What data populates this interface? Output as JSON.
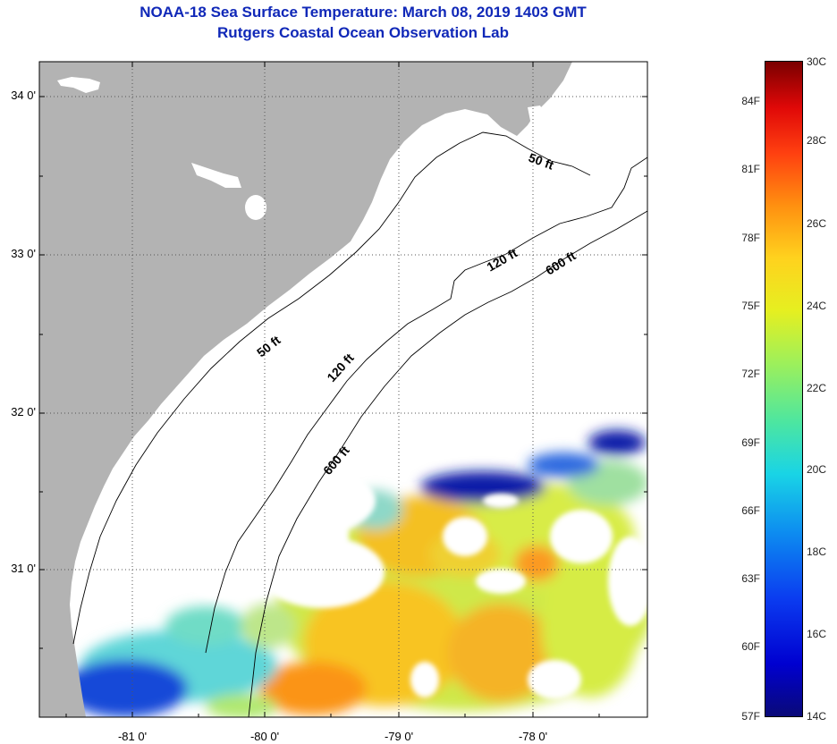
{
  "title_line1": "NOAA-18 Sea Surface Temperature:  March 08, 2019 1403 GMT",
  "title_line2": "Rutgers Coastal Ocean Observation Lab",
  "latitude_labels": [
    "34 0'",
    "33 0'",
    "32 0'",
    "31 0'"
  ],
  "longitude_labels": [
    "-81 0'",
    "-80 0'",
    "-79 0'",
    "-78 0'"
  ],
  "isobath_labels": [
    {
      "name": "50-ft-upper",
      "text": "50 ft"
    },
    {
      "name": "120-ft-upper",
      "text": "120 ft"
    },
    {
      "name": "600-ft-upper",
      "text": "600 ft"
    },
    {
      "name": "50-ft-lower",
      "text": "50 ft"
    },
    {
      "name": "120-ft-lower",
      "text": "120 ft"
    },
    {
      "name": "600-ft-lower",
      "text": "600 ft"
    }
  ],
  "colorbar": {
    "fahrenheit_labels": [
      "84F",
      "81F",
      "78F",
      "75F",
      "72F",
      "69F",
      "66F",
      "63F",
      "60F",
      "57F"
    ],
    "celsius_labels": [
      "30C",
      "28C",
      "26C",
      "24C",
      "22C",
      "20C",
      "18C",
      "16C",
      "14C"
    ]
  },
  "colors": {
    "land": "#b3b3b3",
    "title": "#1028b8",
    "cold": "#0000b4",
    "warm": "#ff9a1e"
  }
}
